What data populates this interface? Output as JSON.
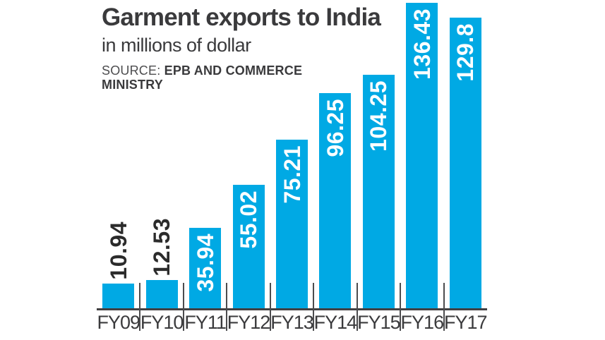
{
  "header": {
    "title": "Garment exports to India",
    "subtitle": "in millions of dollar",
    "source_label": "SOURCE:",
    "source_value": "EPB AND COMMERCE MINISTRY"
  },
  "chart_data": {
    "type": "bar",
    "title": "Garment exports to India",
    "subtitle": "in millions of dollar",
    "source": "SOURCE: EPB AND COMMERCE MINISTRY",
    "categories": [
      "FY09",
      "FY10",
      "FY11",
      "FY12",
      "FY13",
      "FY14",
      "FY15",
      "FY16",
      "FY17"
    ],
    "values": [
      10.94,
      12.53,
      35.94,
      55.02,
      75.21,
      96.25,
      104.25,
      136.43,
      129.8
    ],
    "value_labels": [
      "10.94",
      "12.53",
      "35.94",
      "55.02",
      "75.21",
      "96.25",
      "104.25",
      "136.43",
      "129.8"
    ],
    "xlabel": "",
    "ylabel": "millions of dollar",
    "ylim": [
      0,
      140
    ],
    "grid": false,
    "legend": false,
    "value_labels_rotated": true,
    "colors": {
      "bar": "#00A9E4",
      "value_label_inside": "#FFFFFF",
      "value_label_outside": "#2B2B2B",
      "axis": "#414042",
      "tick": "#4C4C4E",
      "text": "#3A3A3C"
    }
  }
}
